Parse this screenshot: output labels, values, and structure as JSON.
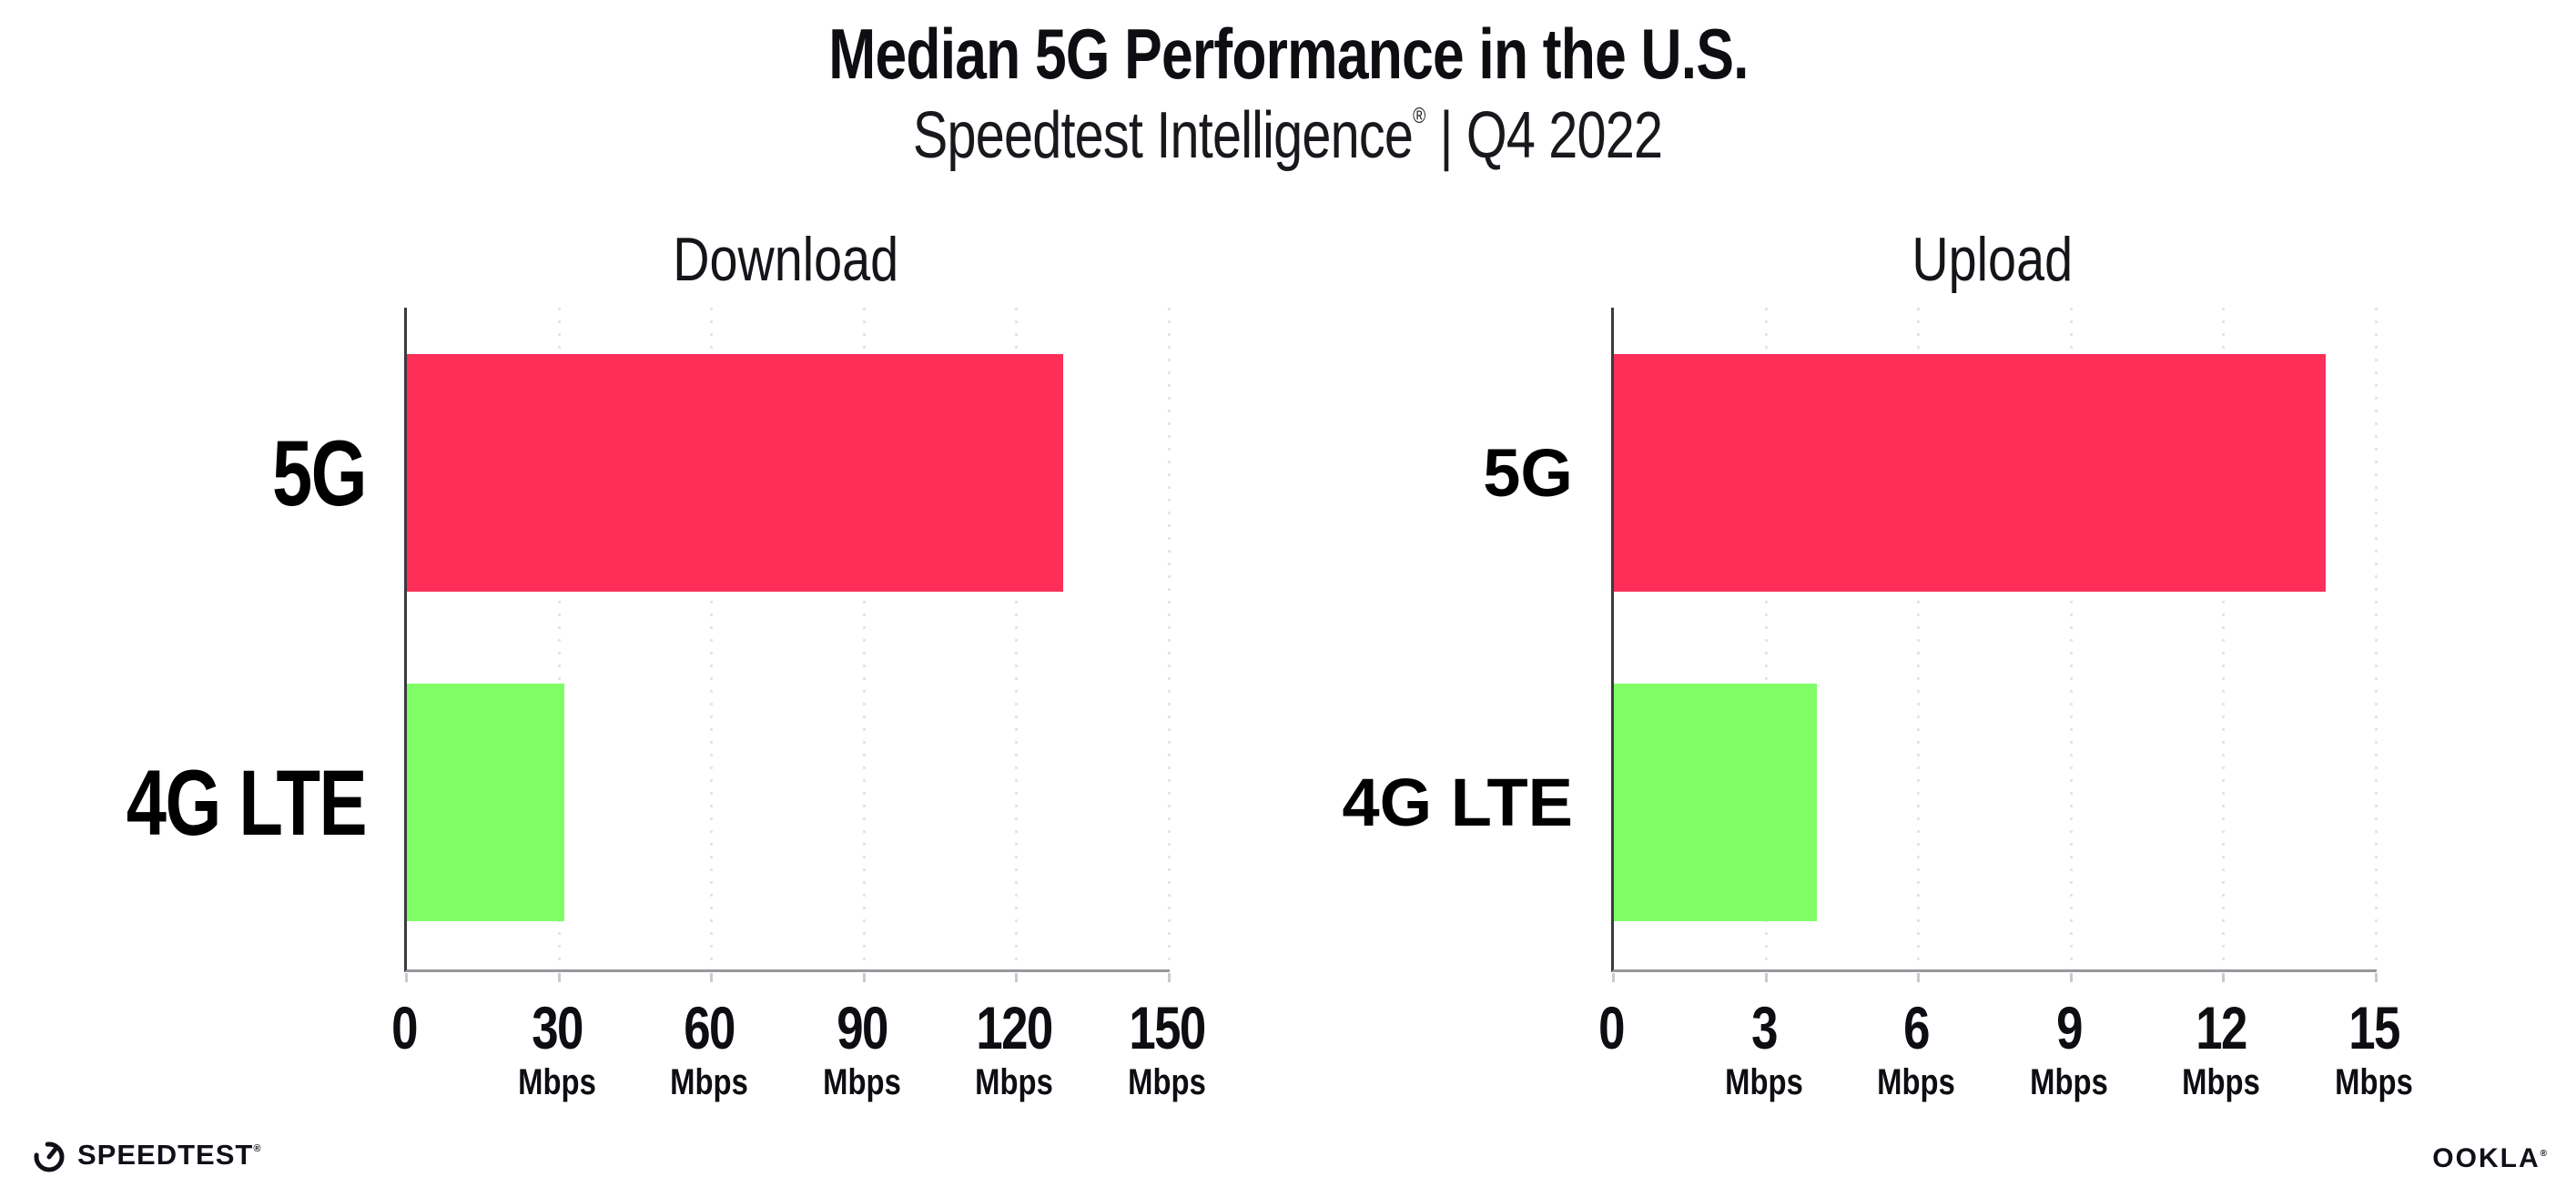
{
  "header": {
    "title": "Median 5G Performance in the U.S.",
    "subtitle_brand": "Speedtest Intelligence",
    "subtitle_reg_mark": "®",
    "subtitle_rest": " | Q4 2022"
  },
  "colors": {
    "bar_5g_pink": "#FD2E57",
    "bar_4g_green": "#7FFE66",
    "gridline": "#E4E4EE",
    "y_axis": "#3A3A41",
    "x_axis": "#97979C",
    "text": "#000000"
  },
  "chart_data": [
    {
      "type": "bar",
      "orientation": "horizontal",
      "title": "Download",
      "categories": [
        "5G",
        "4G LTE"
      ],
      "values": [
        129,
        31
      ],
      "unit": "Mbps",
      "xlim": [
        0,
        150
      ],
      "xticks": [
        0,
        30,
        60,
        90,
        120,
        150
      ],
      "bar_colors": [
        "#FD2E57",
        "#7FFE66"
      ],
      "grid": "dotted-vertical",
      "legend": "none"
    },
    {
      "type": "bar",
      "orientation": "horizontal",
      "title": "Upload",
      "categories": [
        "5G",
        "4G LTE"
      ],
      "values": [
        14,
        4
      ],
      "unit": "Mbps",
      "xlim": [
        0,
        15
      ],
      "xticks": [
        0,
        3,
        6,
        9,
        12,
        15
      ],
      "bar_colors": [
        "#FD2E57",
        "#7FFE66"
      ],
      "grid": "dotted-vertical",
      "legend": "none"
    }
  ],
  "footer": {
    "speedtest_icon": "gauge-icon",
    "speedtest_logo_text": "SPEEDTEST",
    "speedtest_reg_mark": "®",
    "ookla_logo_text": "OOKLA",
    "ookla_reg_mark": "®"
  }
}
